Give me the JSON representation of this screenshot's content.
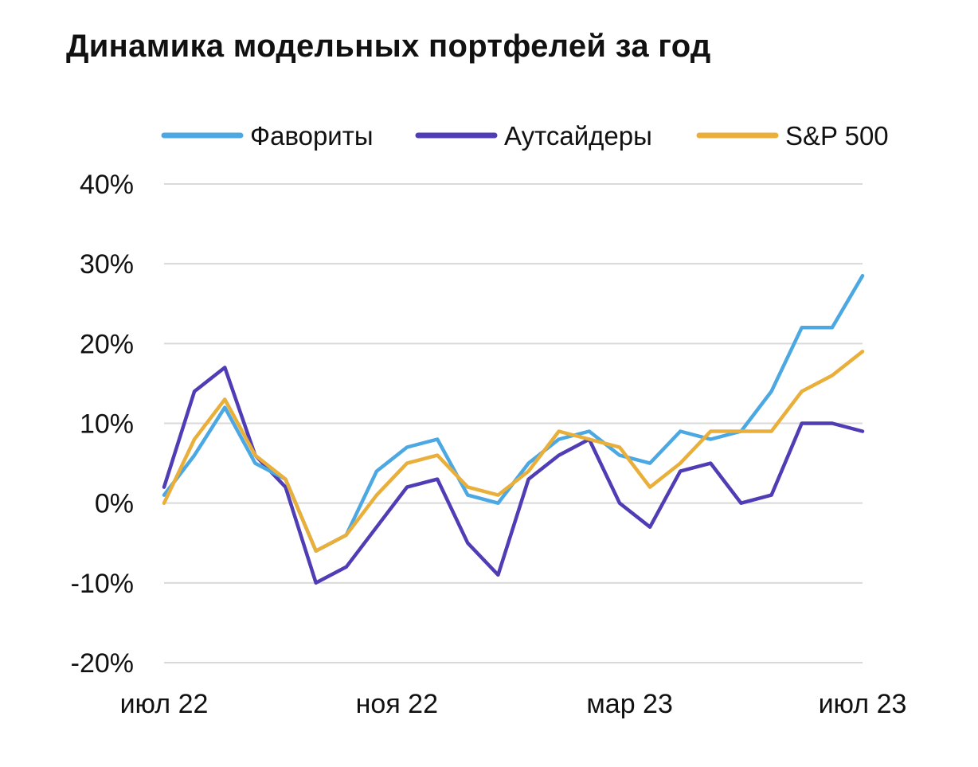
{
  "title": "Динамика модельных портфелей за год",
  "chart_data": {
    "type": "line",
    "title": "Динамика модельных портфелей за год",
    "xlabel": "",
    "ylabel": "",
    "x_ticks": [
      "июл 22",
      "ноя 22",
      "мар 23",
      "июл 23"
    ],
    "y_ticks": [
      "40%",
      "30%",
      "20%",
      "10%",
      "0%",
      "-10%",
      "-20%"
    ],
    "ylim": [
      -20,
      40
    ],
    "y_unit": "%",
    "grid": "horizontal",
    "legend_position": "top",
    "x": [
      "2022-07",
      "2022-08-01",
      "2022-08-15",
      "2022-09-01",
      "2022-09-15",
      "2022-10-01",
      "2022-10-15",
      "2022-11-01",
      "2022-11-15",
      "2022-12-01",
      "2022-12-15",
      "2023-01-01",
      "2023-01-15",
      "2023-02-01",
      "2023-02-15",
      "2023-03-01",
      "2023-03-15",
      "2023-04-01",
      "2023-04-15",
      "2023-05-01",
      "2023-05-15",
      "2023-06-01",
      "2023-06-15",
      "2023-07"
    ],
    "series": [
      {
        "name": "Фавориты",
        "color": "#4BA8E2",
        "values": [
          1,
          6,
          12,
          5,
          3,
          -6,
          -4,
          4,
          7,
          8,
          1,
          0,
          5,
          8,
          9,
          6,
          5,
          9,
          8,
          9,
          14,
          22,
          22,
          28.5
        ]
      },
      {
        "name": "Аутсайдеры",
        "color": "#4F3DB5",
        "values": [
          2,
          14,
          17,
          6,
          2,
          -10,
          -8,
          -3,
          2,
          3,
          -5,
          -9,
          3,
          6,
          8,
          0,
          -3,
          4,
          5,
          0,
          1,
          10,
          10,
          9
        ]
      },
      {
        "name": "S&P 500",
        "color": "#E9AF3A",
        "values": [
          0,
          8,
          13,
          6,
          3,
          -6,
          -4,
          1,
          5,
          6,
          2,
          1,
          4,
          9,
          8,
          7,
          2,
          5,
          9,
          9,
          9,
          14,
          16,
          19
        ]
      }
    ]
  }
}
